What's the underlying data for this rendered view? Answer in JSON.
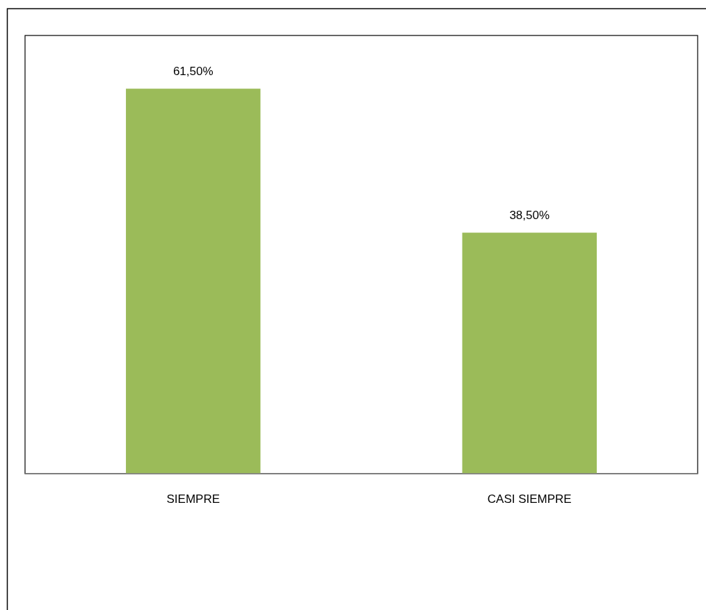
{
  "chart_data": {
    "type": "bar",
    "categories": [
      "SIEMPRE",
      "CASI SIEMPRE"
    ],
    "values": [
      61.5,
      38.5
    ],
    "value_labels": [
      "61,50%",
      "38,50%"
    ],
    "color": "#9bbb59",
    "ylim": [
      0,
      70
    ],
    "tick_labels": "x"
  }
}
